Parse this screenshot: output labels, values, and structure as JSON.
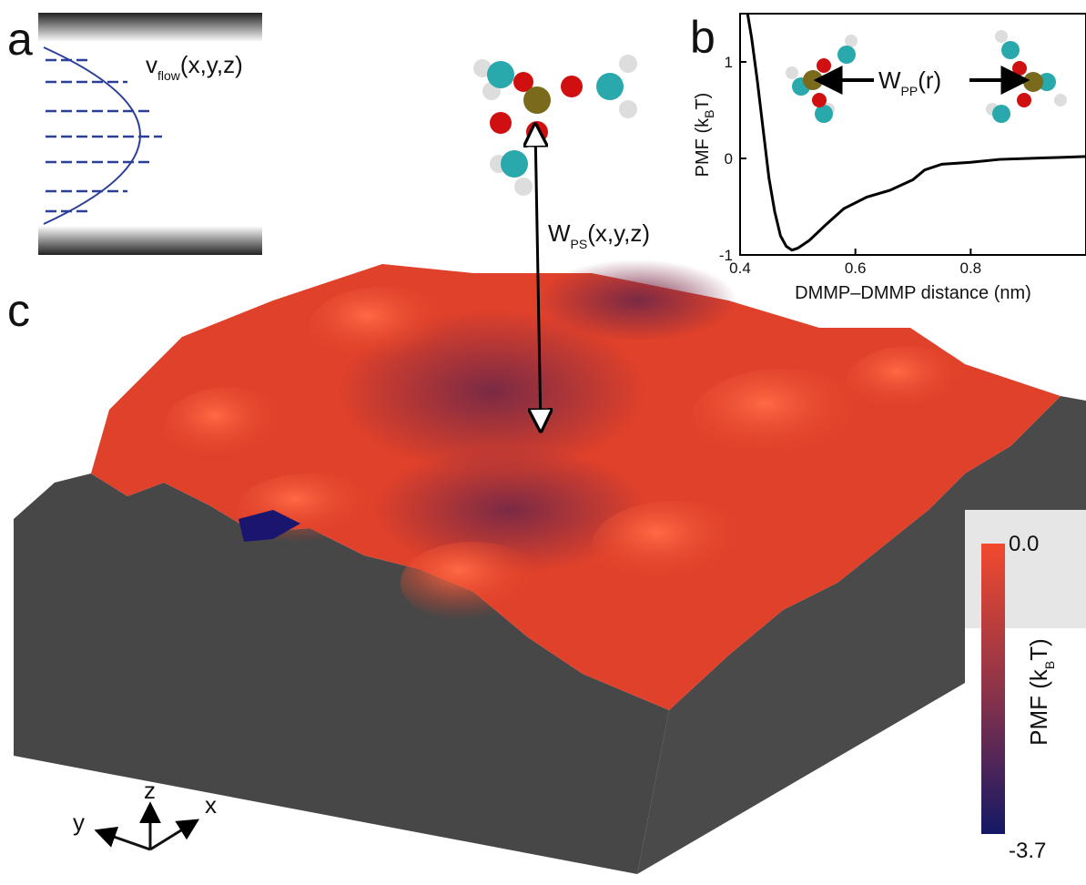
{
  "panel_labels": [
    "a",
    "b",
    "c"
  ],
  "panel_a": {
    "flow_label": {
      "symbol": "v",
      "subscript": "flow",
      "args": "(x,y,z)"
    }
  },
  "chart_data": {
    "type": "line",
    "x_label": "DMMP–DMMP distance (nm)",
    "y_label": {
      "prefix": "PMF (k",
      "subscript": "B",
      "suffix": "T)"
    },
    "annotation": {
      "symbol": "W",
      "subscript": "PP",
      "args": "(r)"
    },
    "x": [
      0.413,
      0.42,
      0.43,
      0.44,
      0.45,
      0.46,
      0.47,
      0.48,
      0.49,
      0.5,
      0.52,
      0.55,
      0.58,
      0.62,
      0.66,
      0.7,
      0.72,
      0.75,
      0.8,
      0.85,
      0.9,
      0.95,
      1.0
    ],
    "series": [
      {
        "color": "#000000",
        "values": [
          1.5,
          1.25,
          0.8,
          0.3,
          -0.2,
          -0.55,
          -0.8,
          -0.91,
          -0.95,
          -0.93,
          -0.85,
          -0.68,
          -0.52,
          -0.4,
          -0.33,
          -0.22,
          -0.12,
          -0.06,
          -0.04,
          -0.01,
          0.0,
          0.01,
          0.02
        ]
      }
    ],
    "xlim": [
      0.4,
      1.0
    ],
    "ylim": [
      -1,
      1.5
    ],
    "xticks": [
      0.4,
      0.6,
      0.8
    ],
    "yticks": [
      -1,
      0,
      1
    ]
  },
  "panel_c": {
    "interaction_label": {
      "symbol": "W",
      "subscript": "PS",
      "args": "(x,y,z)"
    },
    "axes": {
      "z": "z",
      "x": "x",
      "y": "y"
    },
    "colorbar": {
      "label": {
        "prefix": "PMF (k",
        "subscript": "B",
        "suffix": "T)"
      },
      "clim": [
        -3.7,
        0
      ],
      "ticks": [
        {
          "value": 0,
          "label": "0.0"
        },
        -3.7
      ]
    }
  }
}
